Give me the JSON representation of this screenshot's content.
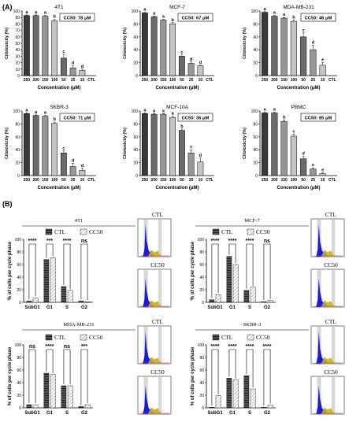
{
  "panel_labels": {
    "A": "(A)",
    "B": "(B)"
  },
  "colors": {
    "bar_dark": "#3a3a3a",
    "bar_mid1": "#6b6b6b",
    "bar_mid2": "#979797",
    "bar_light": "#c4c4c4",
    "bar_white": "#f2f2f2",
    "flow_blue": "#1a1ad8",
    "flow_yellow": "#c2b31a",
    "flow_gate": "#bdbdbd"
  },
  "chart_data": [
    {
      "id": "4T1",
      "type": "bar",
      "title": "4T1",
      "cc50": "CC50: 78 μM",
      "xlabel": "Concentration (μM)",
      "ylabel": "Citotoxicity (%)",
      "categories": [
        "250",
        "200",
        "150",
        "100",
        "50",
        "25",
        "10",
        "CTL"
      ],
      "values": [
        93,
        93,
        92,
        85,
        27,
        12,
        8,
        0
      ],
      "errors": [
        1,
        1,
        1,
        2,
        6,
        3,
        2,
        0
      ],
      "letters": [
        "a",
        "a",
        "a",
        "b",
        "c",
        "d",
        "d",
        ""
      ],
      "ylim": [
        0,
        100
      ],
      "yticks": [
        0,
        10,
        20,
        30,
        40,
        50,
        60,
        70,
        80,
        90,
        100
      ]
    },
    {
      "id": "MCF-7",
      "type": "bar",
      "title": "MCF-7",
      "cc50": "CC50: 67 μM",
      "xlabel": "Concentration (μM)",
      "ylabel": "Citotoxicity (%)",
      "categories": [
        "250",
        "200",
        "150",
        "100",
        "50",
        "25",
        "10",
        "CTL"
      ],
      "values": [
        97,
        91,
        86,
        80,
        30,
        19,
        15,
        0
      ],
      "errors": [
        1,
        1,
        1,
        2,
        2,
        2,
        1,
        0
      ],
      "letters": [
        "a",
        "a",
        "a",
        "b",
        "c",
        "d",
        "d",
        ""
      ],
      "ylim": [
        0,
        100
      ],
      "yticks": [
        0,
        20,
        40,
        60,
        80,
        100
      ]
    },
    {
      "id": "MDA-MB-231",
      "type": "bar",
      "title": "MDA-MB-231",
      "cc50": "CC50: 46 μM",
      "xlabel": "Concentration (μM)",
      "ylabel": "Citotoxicity (%)",
      "categories": [
        "250",
        "200",
        "150",
        "100",
        "50",
        "25",
        "10",
        "CTL"
      ],
      "values": [
        98,
        92,
        89,
        84,
        60,
        40,
        16,
        0
      ],
      "errors": [
        1,
        1,
        1,
        2,
        6,
        7,
        4,
        0
      ],
      "letters": [
        "a",
        "a",
        "a",
        "b",
        "c",
        "d",
        "e",
        ""
      ],
      "ylim": [
        0,
        100
      ],
      "yticks": [
        0,
        20,
        40,
        60,
        80,
        100
      ]
    },
    {
      "id": "SKBR-3",
      "type": "bar",
      "title": "SKBR-3",
      "cc50": "CC50: 71 μM",
      "xlabel": "Concentration (μM)",
      "ylabel": "Citotoxicity (%)",
      "categories": [
        "250",
        "200",
        "150",
        "100",
        "50",
        "25",
        "10",
        "CTL"
      ],
      "values": [
        96,
        93,
        92,
        81,
        35,
        14,
        8,
        0
      ],
      "errors": [
        1,
        1,
        1,
        2,
        3,
        5,
        3,
        0
      ],
      "letters": [
        "a",
        "a",
        "a",
        "b",
        "c",
        "d",
        "d",
        ""
      ],
      "ylim": [
        0,
        100
      ],
      "yticks": [
        0,
        20,
        40,
        60,
        80,
        100
      ]
    },
    {
      "id": "MCF-10A",
      "type": "bar",
      "title": "MCF-10A",
      "cc50": "CC50: 36 μM",
      "xlabel": "Concentration (μM)",
      "ylabel": "Citotoxicity (%)",
      "categories": [
        "250",
        "200",
        "150",
        "100",
        "50",
        "25",
        "10",
        "CTL"
      ],
      "values": [
        96,
        95,
        95,
        90,
        70,
        35,
        21,
        0
      ],
      "errors": [
        1,
        1,
        1,
        2,
        2,
        5,
        6,
        0
      ],
      "letters": [
        "a",
        "a",
        "a",
        "a",
        "b",
        "c",
        "d",
        ""
      ],
      "ylim": [
        0,
        100
      ],
      "yticks": [
        0,
        20,
        40,
        60,
        80,
        100
      ]
    },
    {
      "id": "PBMC",
      "type": "bar",
      "title": "PBMC",
      "cc50": "CC50: 85 μM",
      "xlabel": "Concentration (μM)",
      "ylabel": "Citotoxicity (%)",
      "categories": [
        "250",
        "200",
        "150",
        "100",
        "50",
        "25",
        "10",
        "CTL"
      ],
      "values": [
        97,
        97,
        84,
        61,
        26,
        10,
        3,
        0
      ],
      "errors": [
        1,
        1,
        2,
        3,
        4,
        2,
        1,
        0
      ],
      "letters": [
        "a",
        "a",
        "b",
        "c",
        "d",
        "e",
        "e",
        ""
      ],
      "ylim": [
        0,
        100
      ],
      "yticks": [
        0,
        20,
        40,
        60,
        80,
        100
      ]
    },
    {
      "id": "4T1-cycle",
      "type": "bar",
      "title": "4T1",
      "ylabel": "% of cells per cycle phase",
      "legend": [
        "CTL",
        "CC50"
      ],
      "categories": [
        "SubG1",
        "G1",
        "S",
        "G2"
      ],
      "series": [
        {
          "name": "CTL",
          "values": [
            2,
            68,
            25,
            2
          ]
        },
        {
          "name": "CC50",
          "values": [
            7,
            71,
            19,
            1
          ]
        }
      ],
      "significance": [
        "****",
        "***",
        "****",
        "ns"
      ],
      "ylim": [
        0,
        100
      ],
      "yticks": [
        0,
        20,
        40,
        60,
        80,
        100
      ],
      "flow_labels": [
        "CTL",
        "CC50"
      ]
    },
    {
      "id": "MCF-7-cycle",
      "type": "bar",
      "title": "MCF-7",
      "ylabel": "% of cells per cycle phase",
      "legend": [
        "CTL",
        "CC50"
      ],
      "categories": [
        "SubG1",
        "G1",
        "S",
        "G2"
      ],
      "series": [
        {
          "name": "CTL",
          "values": [
            4,
            73,
            19,
            1
          ]
        },
        {
          "name": "CC50",
          "values": [
            12,
            60,
            24,
            3
          ]
        }
      ],
      "significance": [
        "****",
        "****",
        "****",
        "ns"
      ],
      "ylim": [
        0,
        100
      ],
      "yticks": [
        0,
        20,
        40,
        60,
        80,
        100
      ],
      "flow_labels": [
        "CTL",
        "CC50"
      ]
    },
    {
      "id": "MDA-MB-231-cycle",
      "type": "bar",
      "title": "MDA-MB-231",
      "ylabel": "% of cells per cycle phase",
      "legend": [
        "CTL",
        "CC50"
      ],
      "categories": [
        "SubG1",
        "G1",
        "S",
        "G2"
      ],
      "series": [
        {
          "name": "CTL",
          "values": [
            5,
            55,
            35,
            2
          ]
        },
        {
          "name": "CC50",
          "values": [
            5,
            53,
            35,
            5
          ]
        }
      ],
      "significance": [
        "ns",
        "****",
        "ns",
        "***"
      ],
      "ylim": [
        0,
        100
      ],
      "yticks": [
        0,
        20,
        40,
        60,
        80,
        100
      ],
      "flow_labels": [
        "CTL",
        "CC50"
      ]
    },
    {
      "id": "SKBR-3-cycle",
      "type": "bar",
      "title": "SKBR-3",
      "ylabel": "% of cells per cycle phase",
      "legend": [
        "CTL",
        "CC50"
      ],
      "categories": [
        "SubG1",
        "G1",
        "S",
        "G2"
      ],
      "series": [
        {
          "name": "CTL",
          "values": [
            1,
            47,
            51,
            1
          ]
        },
        {
          "name": "CC50",
          "values": [
            19,
            44,
            30,
            4
          ]
        }
      ],
      "significance": [
        "****",
        "****",
        "****",
        "****"
      ],
      "ylim": [
        0,
        100
      ],
      "yticks": [
        0,
        20,
        40,
        60,
        80,
        100
      ],
      "flow_labels": [
        "CTL",
        "CC50"
      ]
    }
  ]
}
